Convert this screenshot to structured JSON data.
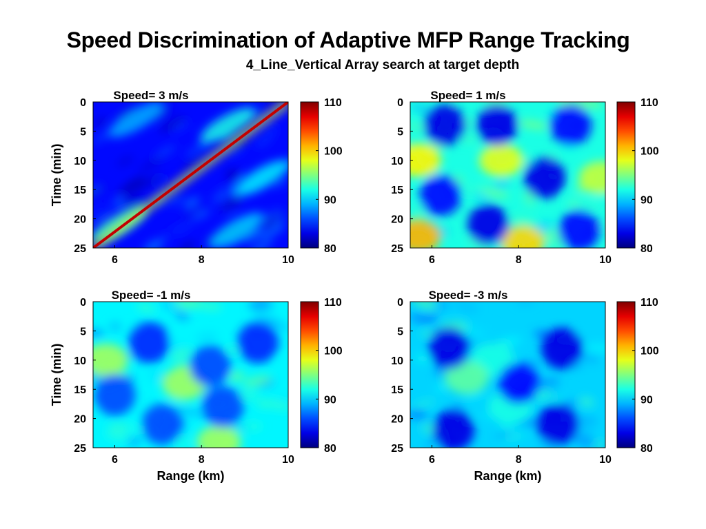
{
  "title": "Speed Discrimination of Adaptive MFP Range Tracking",
  "subtitle": "4_Line_Vertical Array search at target depth",
  "colors": {
    "colormap": "jet",
    "low": "#00008f",
    "high": "#800000"
  },
  "chart_data": [
    {
      "type": "heatmap",
      "title": "Speed= 3 m/s",
      "xlabel": "",
      "ylabel": "Time (min)",
      "xlim": [
        5.5,
        10
      ],
      "ylim": [
        0,
        25
      ],
      "y_reversed": true,
      "x_ticks": [
        "6",
        "8",
        "10"
      ],
      "y_ticks": [
        "0",
        "5",
        "10",
        "15",
        "20",
        "25"
      ],
      "clim": [
        80,
        110
      ],
      "colorbar_ticks": [
        "80",
        "90",
        "100",
        "110"
      ],
      "background_level": 84,
      "track": {
        "x": [
          5.5,
          10
        ],
        "y": [
          25,
          0
        ],
        "peak": 108
      },
      "blobs": [
        {
          "x": 6.1,
          "y": 21,
          "value": 93
        },
        {
          "x": 8.6,
          "y": 4,
          "value": 92
        },
        {
          "x": 9.4,
          "y": 13,
          "value": 91
        },
        {
          "x": 6.5,
          "y": 3,
          "value": 89
        },
        {
          "x": 8.8,
          "y": 22,
          "value": 90
        }
      ]
    },
    {
      "type": "heatmap",
      "title": "Speed= 1 m/s",
      "xlabel": "",
      "ylabel": "",
      "xlim": [
        5.5,
        10
      ],
      "ylim": [
        0,
        25
      ],
      "y_reversed": true,
      "x_ticks": [
        "6",
        "8",
        "10"
      ],
      "y_ticks": [
        "0",
        "5",
        "10",
        "15",
        "20",
        "25"
      ],
      "clim": [
        80,
        110
      ],
      "colorbar_ticks": [
        "80",
        "90",
        "100",
        "110"
      ],
      "background_level": 92,
      "lows": [
        {
          "x": 6.3,
          "y": 4,
          "value": 83
        },
        {
          "x": 7.5,
          "y": 4,
          "value": 83
        },
        {
          "x": 9.2,
          "y": 4,
          "value": 84
        },
        {
          "x": 6.2,
          "y": 16,
          "value": 84
        },
        {
          "x": 8.6,
          "y": 13,
          "value": 83
        },
        {
          "x": 7.3,
          "y": 21,
          "value": 83
        },
        {
          "x": 9.4,
          "y": 22,
          "value": 84
        }
      ],
      "highs": [
        {
          "x": 5.7,
          "y": 10,
          "value": 99
        },
        {
          "x": 5.7,
          "y": 23,
          "value": 101
        },
        {
          "x": 8.1,
          "y": 24,
          "value": 100
        },
        {
          "x": 7.6,
          "y": 10,
          "value": 98
        },
        {
          "x": 9.9,
          "y": 13,
          "value": 97
        }
      ]
    },
    {
      "type": "heatmap",
      "title": "Speed= -1 m/s",
      "xlabel": "",
      "ylabel": "Time (min)",
      "xlim": [
        5.5,
        10
      ],
      "ylim": [
        0,
        25
      ],
      "y_reversed": true,
      "x_ticks": [
        "6",
        "8",
        "10"
      ],
      "y_ticks": [
        "0",
        "5",
        "10",
        "15",
        "20",
        "25"
      ],
      "clim": [
        80,
        110
      ],
      "colorbar_ticks": [
        "80",
        "90",
        "100",
        "110"
      ],
      "background_level": 91,
      "lows": [
        {
          "x": 6.8,
          "y": 7,
          "value": 85
        },
        {
          "x": 9.3,
          "y": 7,
          "value": 85
        },
        {
          "x": 8.2,
          "y": 11,
          "value": 86
        },
        {
          "x": 6.0,
          "y": 16,
          "value": 86
        },
        {
          "x": 8.5,
          "y": 18,
          "value": 86
        },
        {
          "x": 7.1,
          "y": 21,
          "value": 86
        }
      ],
      "highs": [
        {
          "x": 5.8,
          "y": 10,
          "value": 96
        },
        {
          "x": 7.6,
          "y": 14,
          "value": 96
        },
        {
          "x": 8.4,
          "y": 24,
          "value": 96
        }
      ]
    },
    {
      "type": "heatmap",
      "title": "Speed= -3 m/s",
      "xlabel": "",
      "ylabel": "",
      "xlim": [
        5.5,
        10
      ],
      "ylim": [
        0,
        25
      ],
      "y_reversed": true,
      "x_ticks": [
        "6",
        "8",
        "10"
      ],
      "y_ticks": [
        "0",
        "5",
        "10",
        "15",
        "20",
        "25"
      ],
      "clim": [
        80,
        110
      ],
      "colorbar_ticks": [
        "80",
        "90",
        "100",
        "110"
      ],
      "background_level": 90,
      "lows": [
        {
          "x": 6.4,
          "y": 8,
          "value": 83
        },
        {
          "x": 9.0,
          "y": 8,
          "value": 83
        },
        {
          "x": 8.0,
          "y": 14,
          "value": 84
        },
        {
          "x": 6.5,
          "y": 22,
          "value": 83
        },
        {
          "x": 8.9,
          "y": 21,
          "value": 83
        }
      ],
      "highs": [
        {
          "x": 7.4,
          "y": 10,
          "value": 92
        },
        {
          "x": 6.8,
          "y": 13,
          "value": 94
        },
        {
          "x": 7.8,
          "y": 18,
          "value": 92
        }
      ]
    }
  ],
  "shared_labels": {
    "xlabel": "Range (km)"
  }
}
